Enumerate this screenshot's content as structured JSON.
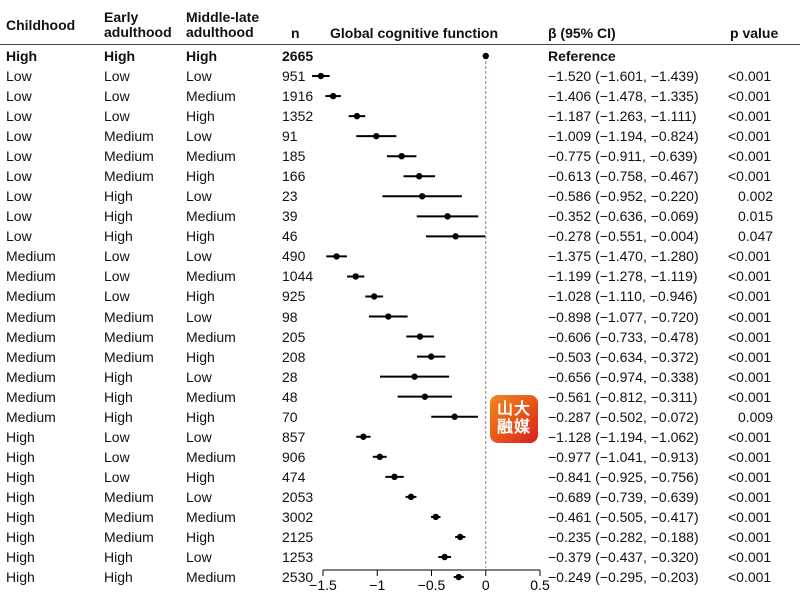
{
  "chart_data": {
    "type": "forest",
    "headers": {
      "childhood": "Childhood",
      "early": "Early adulthood",
      "middle": "Middle-late adulthood",
      "n": "n",
      "plot": "Global cognitive function",
      "beta": "β (95% CI)",
      "p": "p value"
    },
    "xlim": [
      -1.5,
      0.5
    ],
    "xticks": [
      -1.5,
      -1,
      -0.5,
      0,
      0.5
    ],
    "xtick_labels": [
      "−1.5",
      "−1",
      "−0.5",
      "0",
      "0.5"
    ],
    "reference_line": 0,
    "rows": [
      {
        "c": "High",
        "e": "High",
        "m": "High",
        "n": "2665",
        "est": 0,
        "lo": null,
        "hi": null,
        "ci": "Reference",
        "p": "",
        "bold": true
      },
      {
        "c": "Low",
        "e": "Low",
        "m": "Low",
        "n": "951",
        "est": -1.52,
        "lo": -1.601,
        "hi": -1.439,
        "ci": "−1.520 (−1.601, −1.439)",
        "p": "<0.001"
      },
      {
        "c": "Low",
        "e": "Low",
        "m": "Medium",
        "n": "1916",
        "est": -1.406,
        "lo": -1.478,
        "hi": -1.335,
        "ci": "−1.406 (−1.478, −1.335)",
        "p": "<0.001"
      },
      {
        "c": "Low",
        "e": "Low",
        "m": "High",
        "n": "1352",
        "est": -1.187,
        "lo": -1.263,
        "hi": -1.111,
        "ci": "−1.187 (−1.263, −1.111)",
        "p": "<0.001"
      },
      {
        "c": "Low",
        "e": "Medium",
        "m": "Low",
        "n": "91",
        "est": -1.009,
        "lo": -1.194,
        "hi": -0.824,
        "ci": "−1.009 (−1.194, −0.824)",
        "p": "<0.001"
      },
      {
        "c": "Low",
        "e": "Medium",
        "m": "Medium",
        "n": "185",
        "est": -0.775,
        "lo": -0.911,
        "hi": -0.639,
        "ci": "−0.775 (−0.911, −0.639)",
        "p": "<0.001"
      },
      {
        "c": "Low",
        "e": "Medium",
        "m": "High",
        "n": "166",
        "est": -0.613,
        "lo": -0.758,
        "hi": -0.467,
        "ci": "−0.613 (−0.758, −0.467)",
        "p": "<0.001"
      },
      {
        "c": "Low",
        "e": "High",
        "m": "Low",
        "n": "23",
        "est": -0.586,
        "lo": -0.952,
        "hi": -0.22,
        "ci": "−0.586 (−0.952, −0.220)",
        "p": "0.002"
      },
      {
        "c": "Low",
        "e": "High",
        "m": "Medium",
        "n": "39",
        "est": -0.352,
        "lo": -0.636,
        "hi": -0.069,
        "ci": "−0.352 (−0.636, −0.069)",
        "p": "0.015"
      },
      {
        "c": "Low",
        "e": "High",
        "m": "High",
        "n": "46",
        "est": -0.278,
        "lo": -0.551,
        "hi": -0.004,
        "ci": "−0.278 (−0.551, −0.004)",
        "p": "0.047"
      },
      {
        "c": "Medium",
        "e": "Low",
        "m": "Low",
        "n": "490",
        "est": -1.375,
        "lo": -1.47,
        "hi": -1.28,
        "ci": "−1.375 (−1.470, −1.280)",
        "p": "<0.001"
      },
      {
        "c": "Medium",
        "e": "Low",
        "m": "Medium",
        "n": "1044",
        "est": -1.199,
        "lo": -1.278,
        "hi": -1.119,
        "ci": "−1.199 (−1.278, −1.119)",
        "p": "<0.001"
      },
      {
        "c": "Medium",
        "e": "Low",
        "m": "High",
        "n": "925",
        "est": -1.028,
        "lo": -1.11,
        "hi": -0.946,
        "ci": "−1.028 (−1.110, −0.946)",
        "p": "<0.001"
      },
      {
        "c": "Medium",
        "e": "Medium",
        "m": "Low",
        "n": "98",
        "est": -0.898,
        "lo": -1.077,
        "hi": -0.72,
        "ci": "−0.898 (−1.077, −0.720)",
        "p": "<0.001"
      },
      {
        "c": "Medium",
        "e": "Medium",
        "m": "Medium",
        "n": "205",
        "est": -0.606,
        "lo": -0.733,
        "hi": -0.478,
        "ci": "−0.606 (−0.733, −0.478)",
        "p": "<0.001"
      },
      {
        "c": "Medium",
        "e": "Medium",
        "m": "High",
        "n": "208",
        "est": -0.503,
        "lo": -0.634,
        "hi": -0.372,
        "ci": "−0.503 (−0.634, −0.372)",
        "p": "<0.001"
      },
      {
        "c": "Medium",
        "e": "High",
        "m": "Low",
        "n": "28",
        "est": -0.656,
        "lo": -0.974,
        "hi": -0.338,
        "ci": "−0.656 (−0.974, −0.338)",
        "p": "<0.001"
      },
      {
        "c": "Medium",
        "e": "High",
        "m": "Medium",
        "n": "48",
        "est": -0.561,
        "lo": -0.812,
        "hi": -0.311,
        "ci": "−0.561 (−0.812, −0.311)",
        "p": "<0.001"
      },
      {
        "c": "Medium",
        "e": "High",
        "m": "High",
        "n": "70",
        "est": -0.287,
        "lo": -0.502,
        "hi": -0.072,
        "ci": "−0.287 (−0.502, −0.072)",
        "p": "0.009"
      },
      {
        "c": "High",
        "e": "Low",
        "m": "Low",
        "n": "857",
        "est": -1.128,
        "lo": -1.194,
        "hi": -1.062,
        "ci": "−1.128 (−1.194, −1.062)",
        "p": "<0.001"
      },
      {
        "c": "High",
        "e": "Low",
        "m": "Medium",
        "n": "906",
        "est": -0.977,
        "lo": -1.041,
        "hi": -0.913,
        "ci": "−0.977 (−1.041, −0.913)",
        "p": "<0.001"
      },
      {
        "c": "High",
        "e": "Low",
        "m": "High",
        "n": "474",
        "est": -0.841,
        "lo": -0.925,
        "hi": -0.756,
        "ci": "−0.841 (−0.925, −0.756)",
        "p": "<0.001"
      },
      {
        "c": "High",
        "e": "Medium",
        "m": "Low",
        "n": "2053",
        "est": -0.689,
        "lo": -0.739,
        "hi": -0.639,
        "ci": "−0.689 (−0.739, −0.639)",
        "p": "<0.001"
      },
      {
        "c": "High",
        "e": "Medium",
        "m": "Medium",
        "n": "3002",
        "est": -0.461,
        "lo": -0.505,
        "hi": -0.417,
        "ci": "−0.461 (−0.505, −0.417)",
        "p": "<0.001"
      },
      {
        "c": "High",
        "e": "Medium",
        "m": "High",
        "n": "2125",
        "est": -0.235,
        "lo": -0.282,
        "hi": -0.188,
        "ci": "−0.235 (−0.282, −0.188)",
        "p": "<0.001"
      },
      {
        "c": "High",
        "e": "High",
        "m": "Low",
        "n": "1253",
        "est": -0.379,
        "lo": -0.437,
        "hi": -0.32,
        "ci": "−0.379 (−0.437, −0.320)",
        "p": "<0.001"
      },
      {
        "c": "High",
        "e": "High",
        "m": "Medium",
        "n": "2530",
        "est": -0.249,
        "lo": -0.295,
        "hi": -0.203,
        "ci": "−0.249 (−0.295, −0.203)",
        "p": "<0.001"
      }
    ],
    "colors": {
      "ref_line": "#b07070",
      "marks": "#000000"
    }
  },
  "watermark": {
    "text": "山大融媒"
  }
}
